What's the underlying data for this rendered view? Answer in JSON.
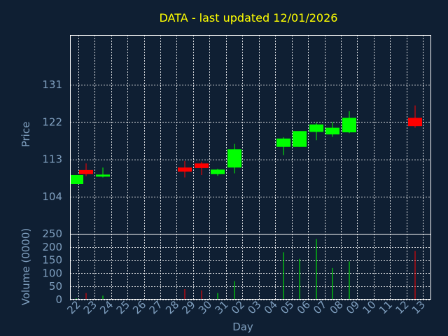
{
  "colors": {
    "background": "#0f1f33",
    "title": "#ffff00",
    "axis_text": "#7f9fbf",
    "grid": "#ffffff",
    "up": "#00ff00",
    "down": "#ff0000",
    "frame": "#ffffff"
  },
  "chart_data": [
    {
      "type": "candlestick",
      "title": "DATA - last updated 12/01/2026",
      "ylabel": "Price",
      "xlabel": "",
      "yticks": [
        104,
        113,
        122,
        131
      ],
      "ylim": [
        95,
        143
      ],
      "xlim": [
        0,
        22
      ],
      "grid": true,
      "candles": [
        {
          "x": 0.4,
          "open": 107.0,
          "close": 109.2,
          "high": 109.2,
          "low": 107.0
        },
        {
          "x": 1.0,
          "open": 110.4,
          "close": 109.4,
          "high": 112.0,
          "low": 108.9
        },
        {
          "x": 2.0,
          "open": 108.8,
          "close": 109.3,
          "high": 111.0,
          "low": 108.6
        },
        {
          "x": 7.0,
          "open": 111.0,
          "close": 110.0,
          "high": 112.6,
          "low": 108.6
        },
        {
          "x": 8.0,
          "open": 112.0,
          "close": 110.9,
          "high": 112.4,
          "low": 109.2
        },
        {
          "x": 9.0,
          "open": 109.4,
          "close": 110.5,
          "high": 110.7,
          "low": 109.0
        },
        {
          "x": 10.0,
          "open": 111.0,
          "close": 115.4,
          "high": 116.7,
          "low": 109.6
        },
        {
          "x": 13.0,
          "open": 116.0,
          "close": 118.0,
          "high": 118.3,
          "low": 114.0
        },
        {
          "x": 14.0,
          "open": 116.0,
          "close": 119.8,
          "high": 119.8,
          "low": 116.0
        },
        {
          "x": 15.0,
          "open": 119.6,
          "close": 121.4,
          "high": 121.8,
          "low": 117.6
        },
        {
          "x": 16.0,
          "open": 119.0,
          "close": 120.6,
          "high": 122.0,
          "low": 118.4
        },
        {
          "x": 17.0,
          "open": 119.5,
          "close": 123.0,
          "high": 124.6,
          "low": 119.3
        },
        {
          "x": 21.0,
          "open": 123.0,
          "close": 121.0,
          "high": 126.0,
          "low": 120.6
        }
      ]
    },
    {
      "type": "bar",
      "ylabel": "Volume (0000)",
      "xlabel": "Day",
      "yticks": [
        0,
        50,
        100,
        150,
        200,
        250
      ],
      "ylim": [
        0,
        250
      ],
      "xlim": [
        0,
        22
      ],
      "grid": true,
      "categories": [
        "22",
        "23",
        "24",
        "25",
        "26",
        "27",
        "28",
        "29",
        "30",
        "31",
        "02",
        "03",
        "04",
        "05",
        "06",
        "07",
        "08",
        "09",
        "10",
        "11",
        "12",
        "13"
      ],
      "bars": [
        {
          "x": 0.4,
          "value": 5,
          "direction": "up"
        },
        {
          "x": 1.0,
          "value": 25,
          "direction": "down"
        },
        {
          "x": 2.0,
          "value": 15,
          "direction": "up"
        },
        {
          "x": 7.0,
          "value": 40,
          "direction": "down"
        },
        {
          "x": 8.0,
          "value": 35,
          "direction": "down"
        },
        {
          "x": 9.0,
          "value": 25,
          "direction": "up"
        },
        {
          "x": 10.0,
          "value": 70,
          "direction": "up"
        },
        {
          "x": 13.0,
          "value": 180,
          "direction": "up"
        },
        {
          "x": 14.0,
          "value": 155,
          "direction": "up"
        },
        {
          "x": 15.0,
          "value": 230,
          "direction": "up"
        },
        {
          "x": 16.0,
          "value": 120,
          "direction": "up"
        },
        {
          "x": 17.0,
          "value": 145,
          "direction": "up"
        },
        {
          "x": 21.0,
          "value": 185,
          "direction": "down"
        }
      ]
    }
  ]
}
